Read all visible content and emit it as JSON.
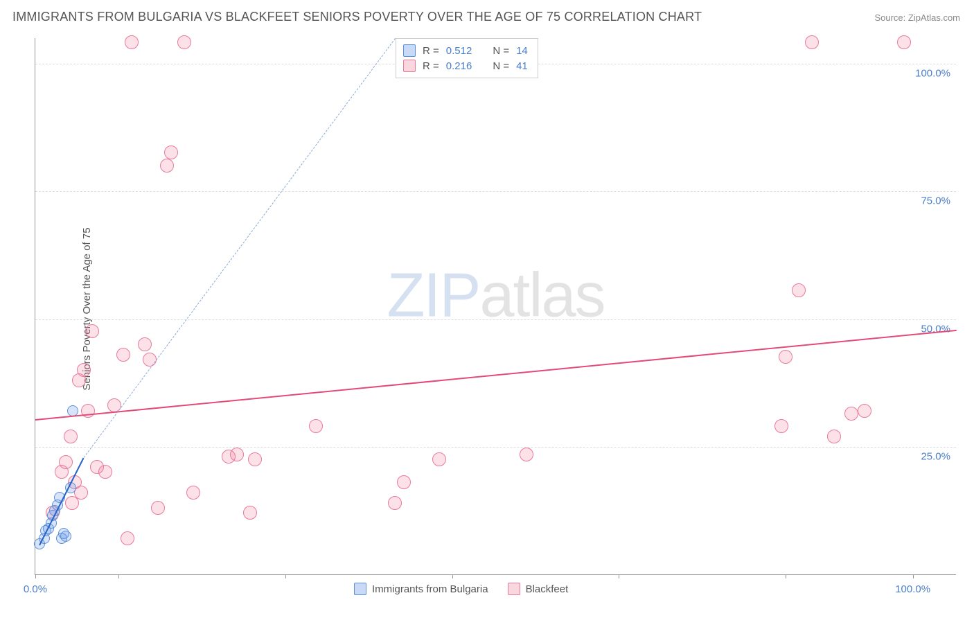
{
  "title": "IMMIGRANTS FROM BULGARIA VS BLACKFEET SENIORS POVERTY OVER THE AGE OF 75 CORRELATION CHART",
  "source": "Source: ZipAtlas.com",
  "y_axis_label": "Seniors Poverty Over the Age of 75",
  "watermark_left": "ZIP",
  "watermark_right": "atlas",
  "chart": {
    "type": "scatter-correlation",
    "background_color": "#ffffff",
    "grid_color": "#dddddd",
    "axis_color": "#999999",
    "xlim": [
      0,
      105
    ],
    "ylim": [
      0,
      105
    ],
    "x_ticks": [
      0,
      9.5,
      28.5,
      47.5,
      66.5,
      85.5,
      100
    ],
    "x_tick_labels": {
      "0": "0.0%",
      "100": "100.0%"
    },
    "y_grid": [
      25,
      50,
      75,
      100
    ],
    "y_tick_labels": {
      "25": "25.0%",
      "50": "50.0%",
      "75": "75.0%",
      "100": "100.0%"
    },
    "label_fontsize": 15,
    "label_color": "#4a7ec9"
  },
  "stats": {
    "series1": {
      "swatch": "blue",
      "r_label": "R =",
      "r": "0.512",
      "n_label": "N =",
      "n": "14"
    },
    "series2": {
      "swatch": "pink",
      "r_label": "R =",
      "r": "0.216",
      "n_label": "N =",
      "n": "41"
    }
  },
  "legend": {
    "series1": {
      "swatch": "blue",
      "label": "Immigrants from Bulgaria"
    },
    "series2": {
      "swatch": "pink",
      "label": "Blackfeet"
    }
  },
  "series_blue": {
    "color_fill": "rgba(100,149,237,0.25)",
    "color_stroke": "#5b8fd6",
    "marker_size": 16,
    "trend": {
      "x1": 0.5,
      "y1": 6,
      "x2": 5.5,
      "y2": 23,
      "color": "#2563c9",
      "width": 2.5,
      "dash_extend_to": {
        "x": 41,
        "y": 105
      }
    },
    "points": [
      {
        "x": 0.5,
        "y": 6
      },
      {
        "x": 1.0,
        "y": 7
      },
      {
        "x": 1.2,
        "y": 8.5
      },
      {
        "x": 1.5,
        "y": 9
      },
      {
        "x": 1.8,
        "y": 10
      },
      {
        "x": 2.0,
        "y": 11.5
      },
      {
        "x": 2.2,
        "y": 12.5
      },
      {
        "x": 2.5,
        "y": 13.5
      },
      {
        "x": 2.8,
        "y": 15
      },
      {
        "x": 3.0,
        "y": 7
      },
      {
        "x": 3.2,
        "y": 8
      },
      {
        "x": 3.5,
        "y": 7.5
      },
      {
        "x": 4.0,
        "y": 17
      },
      {
        "x": 4.3,
        "y": 32
      }
    ]
  },
  "series_pink": {
    "color_fill": "rgba(240,120,150,0.22)",
    "color_stroke": "#e97a9a",
    "marker_size": 20,
    "trend": {
      "x1": 0,
      "y1": 30.5,
      "x2": 105,
      "y2": 48,
      "color": "#e24a78",
      "width": 2.5
    },
    "points": [
      {
        "x": 2,
        "y": 12
      },
      {
        "x": 3,
        "y": 20
      },
      {
        "x": 3.5,
        "y": 22
      },
      {
        "x": 4,
        "y": 27
      },
      {
        "x": 4.5,
        "y": 18
      },
      {
        "x": 5,
        "y": 38
      },
      {
        "x": 5.5,
        "y": 40
      },
      {
        "x": 6,
        "y": 32
      },
      {
        "x": 6.5,
        "y": 47.5
      },
      {
        "x": 7,
        "y": 21
      },
      {
        "x": 8,
        "y": 20
      },
      {
        "x": 9,
        "y": 33
      },
      {
        "x": 10,
        "y": 43
      },
      {
        "x": 10.5,
        "y": 7
      },
      {
        "x": 11,
        "y": 104
      },
      {
        "x": 12.5,
        "y": 45
      },
      {
        "x": 13,
        "y": 42
      },
      {
        "x": 14,
        "y": 13
      },
      {
        "x": 15,
        "y": 80
      },
      {
        "x": 15.5,
        "y": 82.5
      },
      {
        "x": 17,
        "y": 104
      },
      {
        "x": 18,
        "y": 16
      },
      {
        "x": 22,
        "y": 23
      },
      {
        "x": 23,
        "y": 23.5
      },
      {
        "x": 24.5,
        "y": 12
      },
      {
        "x": 25,
        "y": 22.5
      },
      {
        "x": 32,
        "y": 29
      },
      {
        "x": 41,
        "y": 14
      },
      {
        "x": 42,
        "y": 18
      },
      {
        "x": 46,
        "y": 22.5
      },
      {
        "x": 56,
        "y": 23.5
      },
      {
        "x": 85,
        "y": 29
      },
      {
        "x": 85.5,
        "y": 42.5
      },
      {
        "x": 87,
        "y": 55.5
      },
      {
        "x": 88.5,
        "y": 104
      },
      {
        "x": 91,
        "y": 27
      },
      {
        "x": 93,
        "y": 31.5
      },
      {
        "x": 94.5,
        "y": 32
      },
      {
        "x": 99,
        "y": 104
      },
      {
        "x": 4.2,
        "y": 14
      },
      {
        "x": 5.2,
        "y": 16
      }
    ]
  }
}
